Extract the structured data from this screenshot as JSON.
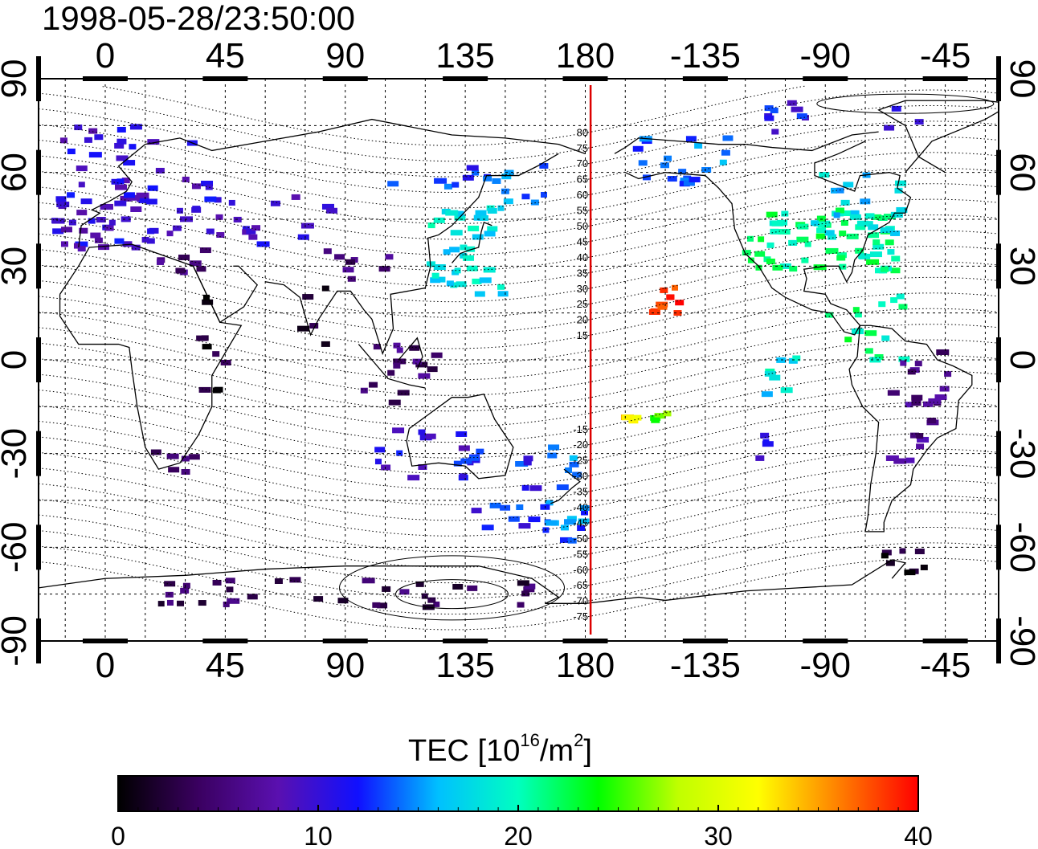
{
  "timestamp": "1998-05-28/23:50:00",
  "map": {
    "lon_ticks_top": [
      "0",
      "45",
      "90",
      "135",
      "180",
      "-135",
      "-90",
      "-45"
    ],
    "lon_ticks_bottom": [
      "0",
      "45",
      "90",
      "135",
      "180",
      "-135",
      "-90",
      "-45"
    ],
    "lat_ticks_left": [
      "90",
      "60",
      "30",
      "0",
      "-30",
      "-60",
      "-90"
    ],
    "lat_ticks_right": [
      "90",
      "60",
      "30",
      "0",
      "-30",
      "-60",
      "-90"
    ],
    "lon_range": [
      -25,
      335
    ],
    "lat_range": [
      -90,
      90
    ],
    "meridian_line_lon": 182,
    "meridian_line_color": "#dd0000",
    "magnetic_lat_labels": [
      "80",
      "75",
      "70",
      "65",
      "60",
      "55",
      "50",
      "45",
      "40",
      "35",
      "30",
      "25",
      "20",
      "15",
      "-15",
      "-20",
      "-25",
      "-30",
      "-35",
      "-40",
      "-45",
      "-50",
      "-55",
      "-60",
      "-65",
      "-70",
      "-75"
    ]
  },
  "colorbar": {
    "title": "TEC  [10",
    "title_sup": "16",
    "title_mid": "/m",
    "title_sup2": "2",
    "title_end": "]",
    "ticks": [
      "0",
      "10",
      "20",
      "30",
      "40"
    ],
    "range": [
      0,
      40
    ],
    "colormap_stops": [
      "#000000",
      "#3a0060",
      "#5a10b0",
      "#1010ff",
      "#00c0ff",
      "#00ffc0",
      "#00ff00",
      "#c0ff00",
      "#ffff00",
      "#ff8000",
      "#ff0000"
    ]
  },
  "tec_clusters": [
    {
      "lon": 8,
      "lat": 55,
      "w": 28,
      "h": 20,
      "n": 60,
      "tec": 10
    },
    {
      "lon": -10,
      "lat": 40,
      "w": 12,
      "h": 10,
      "n": 12,
      "tec": 9
    },
    {
      "lon": 40,
      "lat": 48,
      "w": 12,
      "h": 10,
      "n": 12,
      "tec": 10
    },
    {
      "lon": 70,
      "lat": 45,
      "w": 18,
      "h": 8,
      "n": 12,
      "tec": 10
    },
    {
      "lon": 30,
      "lat": 32,
      "w": 12,
      "h": 8,
      "n": 8,
      "tec": 6
    },
    {
      "lon": 95,
      "lat": 30,
      "w": 12,
      "h": 5,
      "n": 8,
      "tec": 5
    },
    {
      "lon": 40,
      "lat": 5,
      "w": 5,
      "h": 15,
      "n": 10,
      "tec": 2
    },
    {
      "lon": 75,
      "lat": 15,
      "w": 8,
      "h": 10,
      "n": 5,
      "tec": 2
    },
    {
      "lon": 135,
      "lat": 35,
      "w": 14,
      "h": 14,
      "n": 40,
      "tec": 18
    },
    {
      "lon": 125,
      "lat": 58,
      "w": 25,
      "h": 4,
      "n": 10,
      "tec": 13
    },
    {
      "lon": 155,
      "lat": 58,
      "w": 10,
      "h": 8,
      "n": 8,
      "tec": 15
    },
    {
      "lon": 110,
      "lat": -5,
      "w": 18,
      "h": 10,
      "n": 16,
      "tec": 5
    },
    {
      "lon": 120,
      "lat": -30,
      "w": 18,
      "h": 8,
      "n": 15,
      "tec": 10
    },
    {
      "lon": 145,
      "lat": -40,
      "w": 16,
      "h": 14,
      "n": 20,
      "tec": 12
    },
    {
      "lon": 172,
      "lat": -42,
      "w": 8,
      "h": 16,
      "n": 22,
      "tec": 14
    },
    {
      "lon": 25,
      "lat": -32,
      "w": 8,
      "h": 4,
      "n": 6,
      "tec": 4
    },
    {
      "lon": 90,
      "lat": -75,
      "w": 70,
      "h": 5,
      "n": 35,
      "tec": 4
    },
    {
      "lon": 210,
      "lat": 20,
      "w": 5,
      "h": 5,
      "n": 10,
      "tec": 39
    },
    {
      "lon": 195,
      "lat": -18,
      "w": 4,
      "h": 2,
      "n": 4,
      "tec": 33
    },
    {
      "lon": 208,
      "lat": -18,
      "w": 3,
      "h": 2,
      "n": 4,
      "tec": 26
    },
    {
      "lon": 215,
      "lat": 64,
      "w": 18,
      "h": 8,
      "n": 20,
      "tec": 14
    },
    {
      "lon": 268,
      "lat": 38,
      "w": 28,
      "h": 10,
      "n": 70,
      "tec": 21
    },
    {
      "lon": 285,
      "lat": 50,
      "w": 20,
      "h": 10,
      "n": 20,
      "tec": 17
    },
    {
      "lon": 278,
      "lat": 78,
      "w": 30,
      "h": 5,
      "n": 12,
      "tec": 11
    },
    {
      "lon": 285,
      "lat": 12,
      "w": 14,
      "h": 12,
      "n": 16,
      "tec": 21
    },
    {
      "lon": 305,
      "lat": -15,
      "w": 12,
      "h": 18,
      "n": 24,
      "tec": 6
    },
    {
      "lon": 300,
      "lat": -65,
      "w": 8,
      "h": 4,
      "n": 8,
      "tec": 1
    },
    {
      "lon": 245,
      "lat": -28,
      "w": 6,
      "h": 4,
      "n": 4,
      "tec": 11
    },
    {
      "lon": 255,
      "lat": -5,
      "w": 12,
      "h": 6,
      "n": 8,
      "tec": 18
    }
  ]
}
